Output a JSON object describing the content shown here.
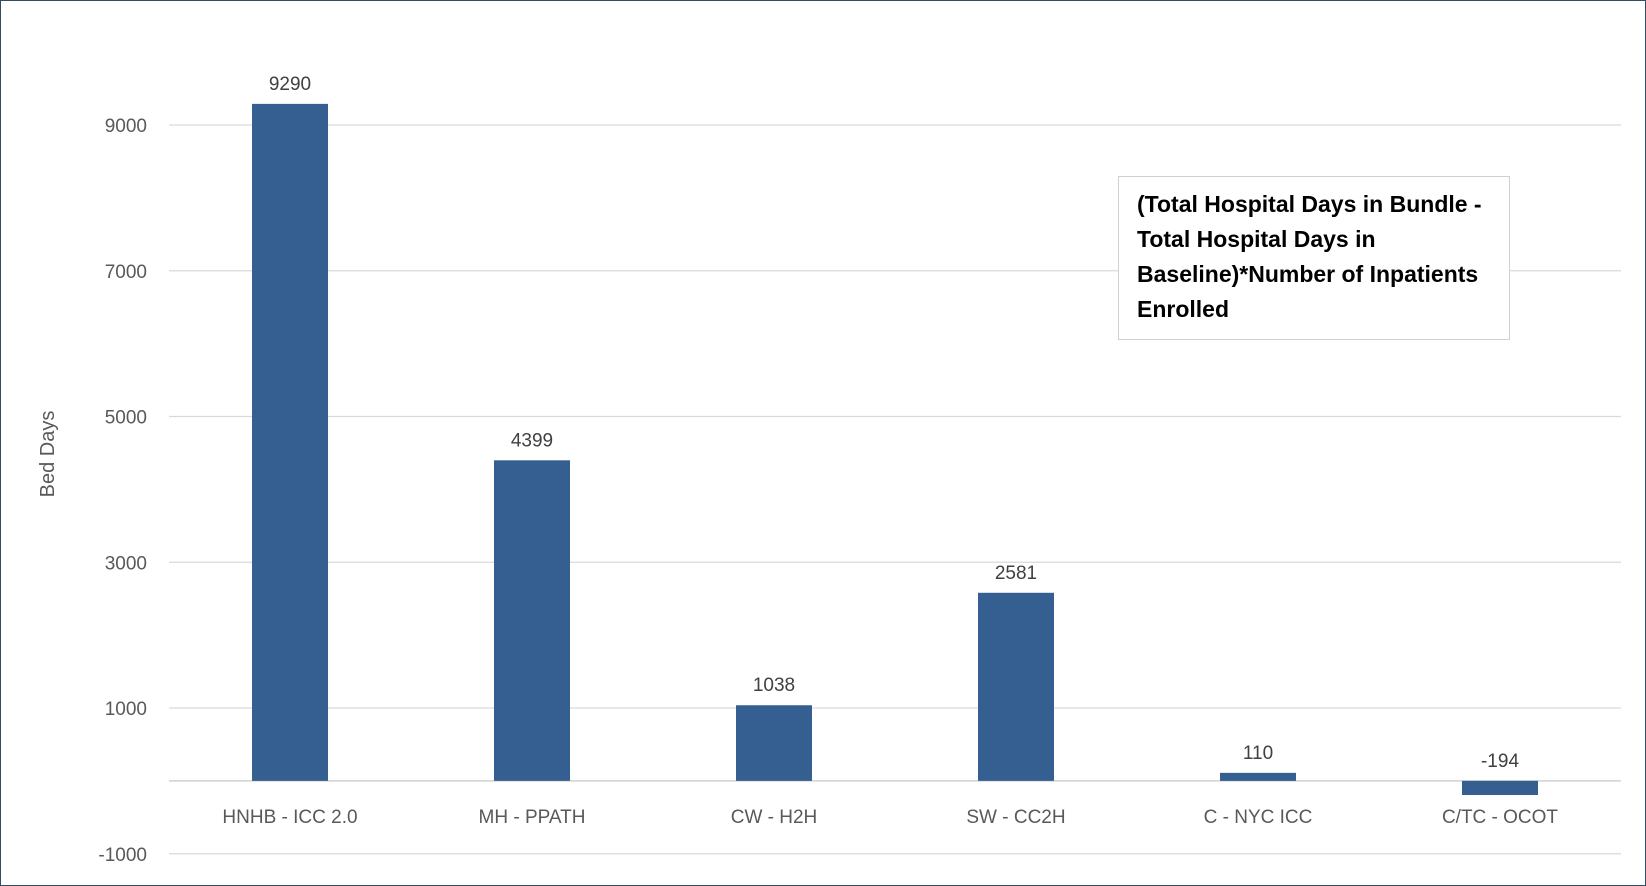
{
  "chart_data": {
    "type": "bar",
    "title": "",
    "xlabel": "",
    "ylabel": "Bed Days",
    "categories": [
      "HNHB -  ICC 2.0",
      "MH - PPATH",
      "CW - H2H",
      "SW - CC2H",
      "C - NYC ICC",
      "C/TC - OCOT"
    ],
    "values": [
      9290,
      4399,
      1038,
      2581,
      110,
      -194
    ],
    "data_labels": [
      "9290",
      "4399",
      "1038",
      "2581",
      "110",
      "-194"
    ],
    "yticks": [
      -1000,
      1000,
      3000,
      5000,
      7000,
      9000
    ],
    "ytick_labels": [
      "-1000",
      "1000",
      "3000",
      "5000",
      "7000",
      "9000"
    ],
    "ylim": [
      -1000,
      10000
    ],
    "grid": true,
    "legend": "none",
    "bar_color": "#365f91",
    "grid_color": "#d9d9d9",
    "annotation": "(Total Hospital Days in Bundle - Total Hospital Days in Baseline)*Number of Inpatients Enrolled"
  }
}
